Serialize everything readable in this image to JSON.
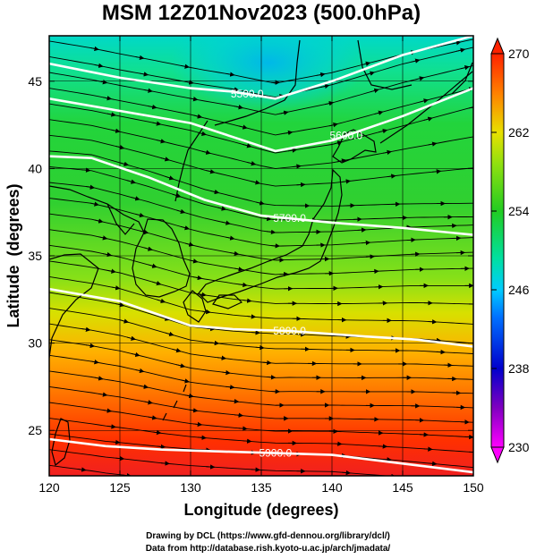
{
  "chart_data": {
    "type": "heatmap",
    "title": "MSM 12Z01Nov2023 (500.0hPa)",
    "xlabel": "Longitude (degrees)",
    "ylabel": "Latitude  (degrees)",
    "xlim": [
      120,
      150
    ],
    "ylim": [
      22.4,
      47.6
    ],
    "x_ticks": [
      120,
      125,
      130,
      135,
      140,
      145,
      150
    ],
    "y_ticks": [
      25,
      30,
      35,
      40,
      45
    ],
    "colorbar": {
      "min": 230,
      "max": 270,
      "ticks": [
        230,
        238,
        246,
        254,
        262,
        270
      ],
      "colors": [
        "#ff00ff",
        "#0000cc",
        "#00ccff",
        "#22cc22",
        "#ccee00",
        "#ff2200"
      ]
    },
    "fill_field": "temperature",
    "contour_field": "height",
    "contours": [
      {
        "label": "5500.0",
        "lon": [
          120,
          125,
          130,
          133,
          136,
          140,
          145,
          150
        ],
        "lat": [
          46.0,
          45.2,
          44.6,
          44.4,
          44.0,
          45.0,
          46.5,
          47.6
        ]
      },
      {
        "label": "5600.0",
        "lon": [
          120,
          125,
          130,
          133,
          136,
          140,
          145,
          150
        ],
        "lat": [
          44.0,
          43.3,
          42.6,
          41.8,
          41.0,
          41.6,
          43.0,
          44.6
        ]
      },
      {
        "label": "5700.0",
        "lon": [
          120,
          123,
          127,
          131,
          135,
          140,
          145,
          150
        ],
        "lat": [
          40.7,
          40.6,
          39.5,
          38.2,
          37.3,
          36.9,
          36.6,
          36.2
        ]
      },
      {
        "label": "5800.0",
        "lon": [
          120,
          125,
          130,
          133,
          137,
          142,
          146,
          150
        ],
        "lat": [
          33.1,
          32.4,
          31.0,
          30.8,
          30.7,
          30.4,
          30.2,
          29.8
        ]
      },
      {
        "label": "5900.0",
        "lon": [
          120,
          124,
          128,
          132,
          136,
          140,
          145,
          150
        ],
        "lat": [
          24.5,
          24.1,
          23.9,
          23.8,
          23.7,
          23.6,
          23.1,
          22.6
        ]
      }
    ]
  },
  "credits": {
    "line1": "Drawing by DCL (https://www.gfd-dennou.org/library/dcl/)",
    "line2": "Data from http://database.rish.kyoto-u.ac.jp/arch/jmadata/"
  }
}
